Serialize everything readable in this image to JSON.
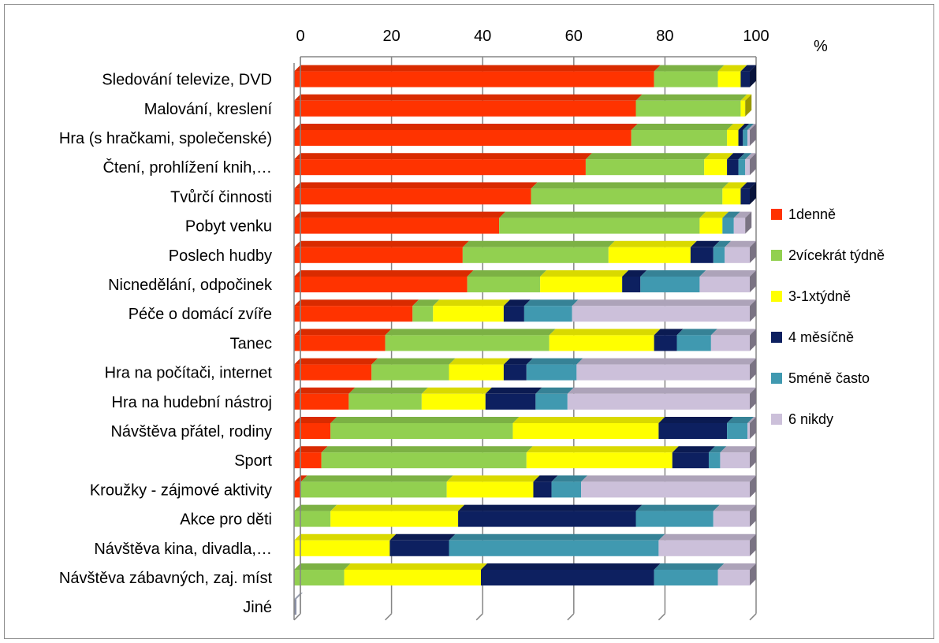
{
  "chart_data": {
    "type": "bar",
    "orientation": "horizontal",
    "stacked": true,
    "unit": "%",
    "xlim": [
      0,
      100
    ],
    "xticks": [
      0,
      20,
      40,
      60,
      80,
      100
    ],
    "grid": true,
    "legend_position": "right",
    "categories": [
      "Sledování televize, DVD",
      "Malování, kreslení",
      "Hra (s hračkami, společenské)",
      "Čtení, prohlížení knih,…",
      "Tvůrčí činnosti",
      "Pobyt venku",
      "Poslech hudby",
      "Nicnedělání, odpočinek",
      "Péče o domácí zvíře",
      "Tanec",
      "Hra na počítači, internet",
      "Hra na hudební nástroj",
      "Návštěva přátel, rodiny",
      "Sport",
      "Kroužky - zájmové aktivity",
      "Akce pro děti",
      "Návštěva kina, divadla,…",
      "Návštěva zábavných, zaj. míst",
      "Jiné"
    ],
    "series": [
      {
        "name": "1denně",
        "color": "#ff3300",
        "values": [
          79,
          75,
          74,
          64,
          52,
          45,
          37,
          38,
          26,
          20,
          17,
          12,
          8,
          6,
          1.5,
          0,
          0,
          0,
          0
        ]
      },
      {
        "name": "2vícekrát týdně",
        "color": "#92d050",
        "values": [
          14,
          23,
          21,
          26,
          42,
          44,
          32,
          16,
          4.5,
          36,
          17,
          16,
          40,
          45,
          32,
          8,
          0,
          11,
          0
        ]
      },
      {
        "name": "3-1xtýdně",
        "color": "#ffff00",
        "values": [
          5,
          1,
          2.5,
          5,
          4,
          5,
          18,
          18,
          15.5,
          23,
          12,
          14,
          32,
          32,
          19,
          28,
          21,
          30,
          0
        ]
      },
      {
        "name": "4 měsíčně",
        "color": "#0d2060",
        "values": [
          2,
          0,
          1,
          2.5,
          2,
          0,
          5,
          4,
          4.5,
          5,
          5,
          11,
          15,
          8,
          4,
          39,
          13,
          38,
          0
        ]
      },
      {
        "name": "5méně často",
        "color": "#4099b0",
        "values": [
          0,
          0,
          1,
          1.5,
          0,
          2.5,
          2.5,
          13,
          10.5,
          7.5,
          11,
          7,
          4.5,
          2.5,
          6.5,
          17,
          46,
          14,
          0
        ]
      },
      {
        "name": "6 nikdy",
        "color": "#ccc0da",
        "values": [
          0,
          0,
          0.5,
          1,
          0,
          2.5,
          5.5,
          11,
          39,
          8.5,
          38,
          40,
          0.5,
          6.5,
          37,
          8,
          20,
          7,
          0
        ]
      }
    ]
  }
}
